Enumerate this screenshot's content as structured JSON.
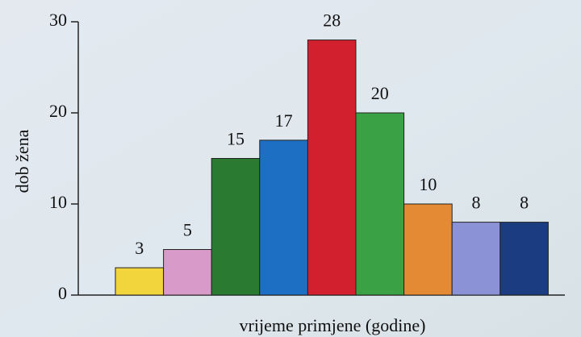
{
  "chart_data": {
    "type": "bar",
    "categories": [
      null,
      null,
      null,
      null,
      null,
      null,
      null,
      null,
      null
    ],
    "values": [
      3,
      5,
      15,
      17,
      28,
      20,
      10,
      8,
      8
    ],
    "colors": [
      "#f2d43c",
      "#d89ac8",
      "#2b7a32",
      "#1c6fc2",
      "#d2202e",
      "#3aa244",
      "#e48a34",
      "#8c92d6",
      "#1c3c82"
    ],
    "ylim": [
      0,
      30
    ],
    "yticks": [
      0,
      10,
      20,
      30
    ],
    "ylabel": "dob žena",
    "xlabel": "vrijeme primjene (godine)"
  }
}
